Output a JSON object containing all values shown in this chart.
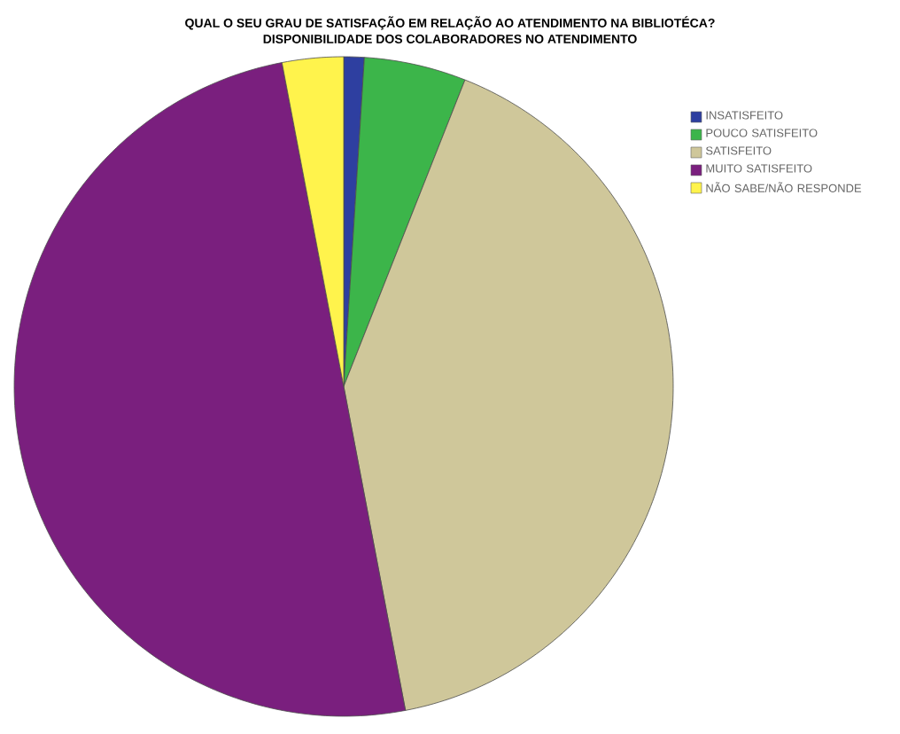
{
  "chart_data": {
    "type": "pie",
    "title": "QUAL O SEU GRAU DE SATISFAÇÃO EM RELAÇÃO AO ATENDIMENTO NA BIBLIOTÉCA?",
    "subtitle": "DISPONIBILIDADE DOS COLABORADORES NO ATENDIMENTO",
    "categories": [
      "INSATISFEITO",
      "POUCO SATISFEITO",
      "SATISFEITO",
      "MUITO SATISFEITO",
      "NÃO SABE/NÃO RESPONDE"
    ],
    "values": [
      1,
      5,
      41,
      50,
      3
    ],
    "colors": [
      "#2e3fa0",
      "#3cb54a",
      "#cfc79a",
      "#7a1f7e",
      "#fff34c"
    ],
    "legend": "right"
  }
}
